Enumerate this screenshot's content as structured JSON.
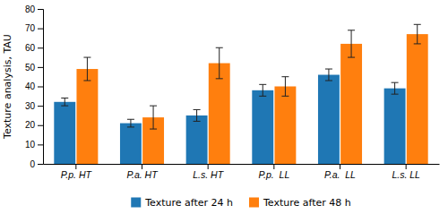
{
  "chart_data": {
    "type": "bar",
    "ylabel": "Texture analysis, TAU",
    "categories": [
      "P.p. HT",
      "P.a. HT",
      "L.s. HT",
      "P.p.  LL",
      "P.a.  LL",
      "L.s. LL"
    ],
    "series": [
      {
        "name": "Texture after 24 h",
        "values": [
          32,
          21,
          25,
          38,
          46,
          39
        ],
        "errors": [
          2,
          2,
          3,
          3,
          3,
          3
        ]
      },
      {
        "name": "Texture after 48 h",
        "values": [
          49,
          24,
          52,
          40,
          62,
          67
        ],
        "errors": [
          6,
          6,
          8,
          5,
          7,
          5
        ]
      }
    ],
    "ylim": [
      0,
      80
    ],
    "yticks": [
      0,
      10,
      20,
      30,
      40,
      50,
      60,
      70,
      80
    ],
    "grid": false,
    "legend": "bottom"
  }
}
